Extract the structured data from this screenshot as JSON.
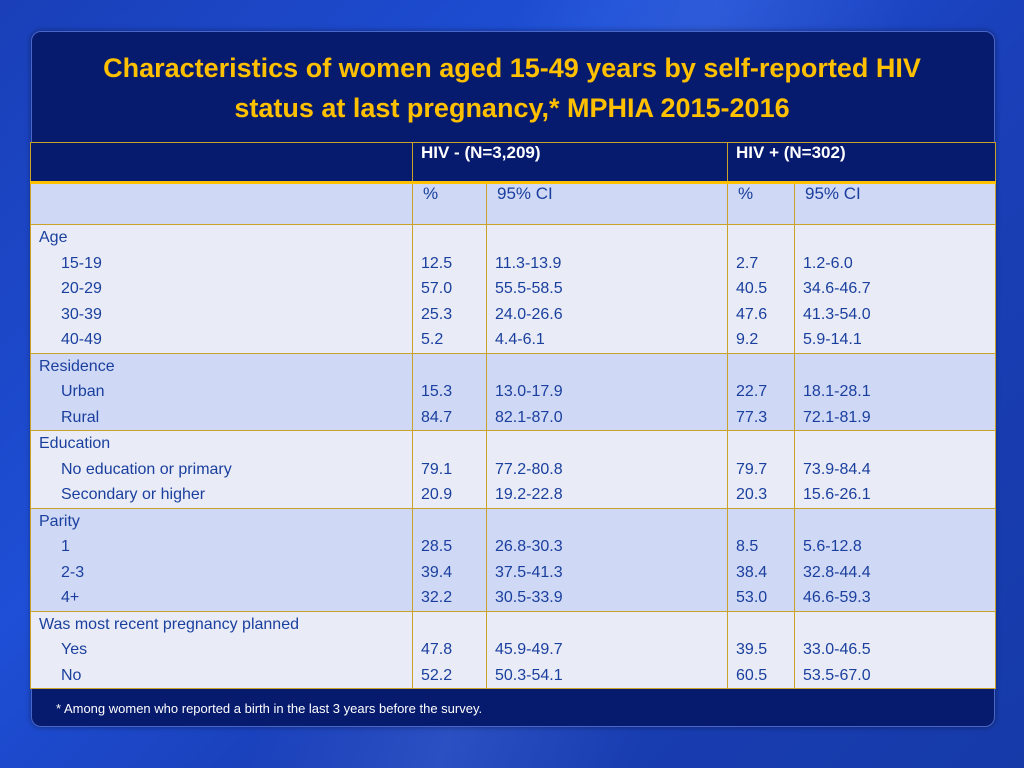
{
  "title_line1": "Characteristics of women aged 15-49 years by self-reported HIV",
  "title_line2": "status at last pregnancy,* MPHIA 2015-2016",
  "header": {
    "hiv_neg": "HIV - (N=3,209)",
    "hiv_pos": "HIV + (N=302)",
    "pct": "%",
    "ci": "95% CI"
  },
  "groups": [
    {
      "label": "Age",
      "rows": [
        {
          "name": "15-19",
          "neg_pct": "12.5",
          "neg_ci": "11.3-13.9",
          "pos_pct": "2.7",
          "pos_ci": "1.2-6.0"
        },
        {
          "name": "20-29",
          "neg_pct": "57.0",
          "neg_ci": "55.5-58.5",
          "pos_pct": "40.5",
          "pos_ci": "34.6-46.7"
        },
        {
          "name": "30-39",
          "neg_pct": "25.3",
          "neg_ci": "24.0-26.6",
          "pos_pct": "47.6",
          "pos_ci": "41.3-54.0"
        },
        {
          "name": "40-49",
          "neg_pct": "5.2",
          "neg_ci": "4.4-6.1",
          "pos_pct": "9.2",
          "pos_ci": "5.9-14.1"
        }
      ]
    },
    {
      "label": "Residence",
      "rows": [
        {
          "name": "Urban",
          "neg_pct": "15.3",
          "neg_ci": "13.0-17.9",
          "pos_pct": "22.7",
          "pos_ci": "18.1-28.1"
        },
        {
          "name": "Rural",
          "neg_pct": "84.7",
          "neg_ci": "82.1-87.0",
          "pos_pct": "77.3",
          "pos_ci": "72.1-81.9"
        }
      ]
    },
    {
      "label": "Education",
      "rows": [
        {
          "name": "No education or primary",
          "neg_pct": "79.1",
          "neg_ci": "77.2-80.8",
          "pos_pct": "79.7",
          "pos_ci": "73.9-84.4"
        },
        {
          "name": "Secondary or higher",
          "neg_pct": "20.9",
          "neg_ci": "19.2-22.8",
          "pos_pct": "20.3",
          "pos_ci": "15.6-26.1"
        }
      ]
    },
    {
      "label": "Parity",
      "rows": [
        {
          "name": "1",
          "neg_pct": "28.5",
          "neg_ci": "26.8-30.3",
          "pos_pct": "8.5",
          "pos_ci": "5.6-12.8"
        },
        {
          "name": "2-3",
          "neg_pct": "39.4",
          "neg_ci": "37.5-41.3",
          "pos_pct": "38.4",
          "pos_ci": "32.8-44.4"
        },
        {
          "name": "4+",
          "neg_pct": "32.2",
          "neg_ci": "30.5-33.9",
          "pos_pct": "53.0",
          "pos_ci": "46.6-59.3"
        }
      ]
    },
    {
      "label": "Was most recent pregnancy planned",
      "rows": [
        {
          "name": "Yes",
          "neg_pct": "47.8",
          "neg_ci": "45.9-49.7",
          "pos_pct": "39.5",
          "pos_ci": "33.0-46.5"
        },
        {
          "name": "No",
          "neg_pct": "52.2",
          "neg_ci": "50.3-54.1",
          "pos_pct": "60.5",
          "pos_ci": "53.5-67.0"
        }
      ]
    }
  ],
  "footnote": "* Among women who reported a birth in the last 3 years before the survey.",
  "colors": {
    "title": "#ffc000",
    "text": "#1a3f9e",
    "panel": "#061a6e",
    "row_light": "#e9ecf7",
    "row_dark": "#cfd8f5"
  }
}
